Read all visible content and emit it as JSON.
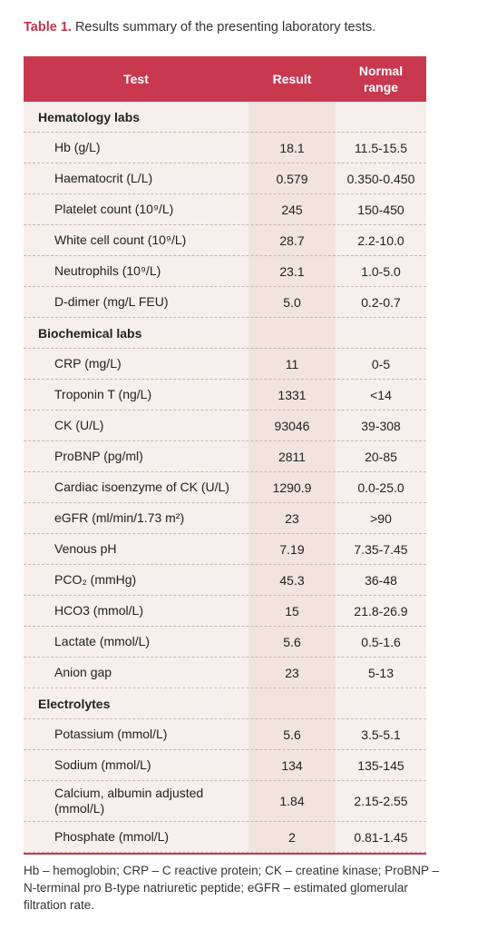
{
  "caption": {
    "label": "Table 1.",
    "text": " Results summary of the presenting laboratory tests."
  },
  "header": {
    "test": "Test",
    "result": "Result",
    "normal_line1": "Normal",
    "normal_line2": "range"
  },
  "sections": [
    {
      "title": "Hematology labs",
      "rows": [
        {
          "test": "Hb (g/L)",
          "result": "18.1",
          "normal": "11.5-15.5"
        },
        {
          "test": "Haematocrit (L/L)",
          "result": "0.579",
          "normal": "0.350-0.450"
        },
        {
          "test": "Platelet count (10⁹/L)",
          "result": "245",
          "normal": "150-450"
        },
        {
          "test": "White cell count (10⁹/L)",
          "result": "28.7",
          "normal": "2.2-10.0"
        },
        {
          "test": "Neutrophils (10⁹/L)",
          "result": "23.1",
          "normal": "1.0-5.0"
        },
        {
          "test": "D-dimer (mg/L FEU)",
          "result": "5.0",
          "normal": "0.2-0.7"
        }
      ]
    },
    {
      "title": "Biochemical labs",
      "rows": [
        {
          "test": "CRP (mg/L)",
          "result": "11",
          "normal": "0-5"
        },
        {
          "test": "Troponin T (ng/L)",
          "result": "1331",
          "normal": "<14"
        },
        {
          "test": "CK (U/L)",
          "result": "93046",
          "normal": "39-308"
        },
        {
          "test": "ProBNP (pg/ml)",
          "result": "2811",
          "normal": "20-85"
        },
        {
          "test": "Cardiac isoenzyme of CK (U/L)",
          "result": "1290.9",
          "normal": "0.0-25.0"
        },
        {
          "test": "eGFR (ml/min/1.73 m²)",
          "result": "23",
          "normal": ">90"
        },
        {
          "test": "Venous pH",
          "result": "7.19",
          "normal": "7.35-7.45"
        },
        {
          "test": "PCO₂ (mmHg)",
          "result": "45.3",
          "normal": "36-48"
        },
        {
          "test": "HCO3 (mmol/L)",
          "result": "15",
          "normal": "21.8-26.9"
        },
        {
          "test": "Lactate (mmol/L)",
          "result": "5.6",
          "normal": "0.5-1.6"
        },
        {
          "test": "Anion gap",
          "result": "23",
          "normal": "5-13"
        }
      ]
    },
    {
      "title": "Electrolytes",
      "rows": [
        {
          "test": "Potassium (mmol/L)",
          "result": "5.6",
          "normal": "3.5-5.1"
        },
        {
          "test": "Sodium (mmol/L)",
          "result": "134",
          "normal": "135-145"
        },
        {
          "test": "Calcium, albumin adjusted (mmol/L)",
          "result": "1.84",
          "normal": "2.15-2.55",
          "tall": true
        },
        {
          "test": "Phosphate (mmol/L)",
          "result": "2",
          "normal": "0.81-1.45"
        }
      ]
    }
  ],
  "footnote": "Hb – hemoglobin; CRP – C reactive protein; CK – creatine kinase; ProBNP – N-terminal pro B-type natriuretic peptide; eGFR – estimated glomerular filtration rate."
}
